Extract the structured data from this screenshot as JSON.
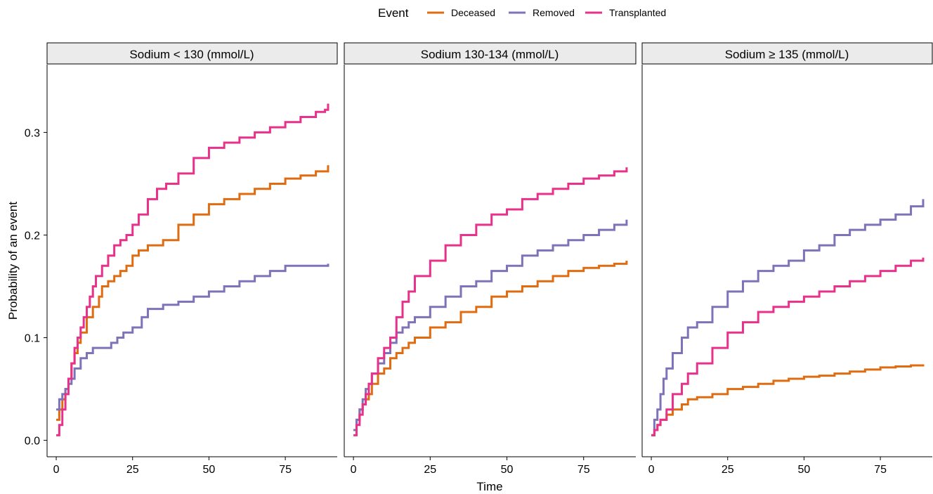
{
  "legend": {
    "title": "Event",
    "entries": [
      {
        "label": "Deceased",
        "color": "#e06c12"
      },
      {
        "label": "Removed",
        "color": "#7e72b8"
      },
      {
        "label": "Transplanted",
        "color": "#e7318a"
      }
    ]
  },
  "axes": {
    "xlabel": "Time",
    "ylabel": "Probability of an event",
    "xticks": [
      "0",
      "25",
      "50",
      "75"
    ],
    "yticks": [
      "0.0",
      "0.1",
      "0.2",
      "0.3"
    ]
  },
  "chart_data": [
    {
      "type": "line",
      "step": true,
      "title": "Sodium < 130 (mmol/L)",
      "xlabel": "Time",
      "ylabel": "Probability of an event",
      "xlim": [
        -3,
        92
      ],
      "ylim": [
        -0.016,
        0.366
      ],
      "series": [
        {
          "name": "Deceased",
          "color": "#e06c12",
          "x": [
            0,
            1,
            2,
            3,
            4,
            5,
            6,
            7,
            8,
            10,
            12,
            14,
            15,
            17,
            19,
            21,
            23,
            25,
            27,
            30,
            35,
            40,
            45,
            50,
            55,
            60,
            65,
            70,
            75,
            80,
            85,
            89
          ],
          "y": [
            0.02,
            0.03,
            0.04,
            0.05,
            0.06,
            0.075,
            0.085,
            0.095,
            0.105,
            0.12,
            0.13,
            0.14,
            0.15,
            0.155,
            0.16,
            0.165,
            0.17,
            0.18,
            0.185,
            0.19,
            0.195,
            0.21,
            0.22,
            0.23,
            0.235,
            0.24,
            0.245,
            0.25,
            0.255,
            0.258,
            0.262,
            0.268
          ]
        },
        {
          "name": "Removed",
          "color": "#7e72b8",
          "x": [
            0,
            1,
            2,
            3,
            4,
            5,
            6,
            8,
            10,
            12,
            15,
            18,
            20,
            22,
            25,
            28,
            30,
            35,
            40,
            45,
            50,
            55,
            60,
            65,
            70,
            75,
            80,
            85,
            89
          ],
          "y": [
            0.03,
            0.04,
            0.045,
            0.05,
            0.055,
            0.06,
            0.07,
            0.08,
            0.085,
            0.09,
            0.09,
            0.095,
            0.1,
            0.105,
            0.11,
            0.12,
            0.128,
            0.132,
            0.135,
            0.14,
            0.145,
            0.15,
            0.155,
            0.16,
            0.165,
            0.17,
            0.17,
            0.17,
            0.172
          ]
        },
        {
          "name": "Transplanted",
          "color": "#e7318a",
          "x": [
            0,
            1,
            2,
            3,
            4,
            5,
            6,
            7,
            8,
            9,
            10,
            11,
            12,
            13,
            15,
            17,
            19,
            21,
            23,
            25,
            27,
            30,
            33,
            36,
            40,
            45,
            50,
            55,
            60,
            65,
            70,
            75,
            80,
            85,
            88,
            89
          ],
          "y": [
            0.005,
            0.015,
            0.03,
            0.045,
            0.06,
            0.075,
            0.09,
            0.1,
            0.11,
            0.12,
            0.13,
            0.14,
            0.15,
            0.16,
            0.17,
            0.18,
            0.19,
            0.195,
            0.2,
            0.21,
            0.22,
            0.235,
            0.245,
            0.25,
            0.26,
            0.275,
            0.285,
            0.29,
            0.295,
            0.3,
            0.305,
            0.31,
            0.315,
            0.32,
            0.322,
            0.328
          ]
        }
      ]
    },
    {
      "type": "line",
      "step": true,
      "title": "Sodium 130-134 (mmol/L)",
      "xlabel": "Time",
      "ylabel": "Probability of an event",
      "xlim": [
        -3,
        92
      ],
      "ylim": [
        -0.016,
        0.366
      ],
      "series": [
        {
          "name": "Deceased",
          "color": "#e06c12",
          "x": [
            0,
            1,
            2,
            3,
            4,
            5,
            6,
            8,
            10,
            12,
            14,
            16,
            18,
            20,
            25,
            30,
            35,
            40,
            45,
            50,
            55,
            60,
            65,
            70,
            75,
            80,
            85,
            89
          ],
          "y": [
            0.01,
            0.02,
            0.03,
            0.035,
            0.04,
            0.045,
            0.055,
            0.065,
            0.07,
            0.08,
            0.085,
            0.09,
            0.095,
            0.1,
            0.11,
            0.115,
            0.125,
            0.13,
            0.14,
            0.145,
            0.15,
            0.155,
            0.16,
            0.165,
            0.168,
            0.17,
            0.172,
            0.175
          ]
        },
        {
          "name": "Removed",
          "color": "#7e72b8",
          "x": [
            0,
            1,
            2,
            3,
            4,
            5,
            6,
            8,
            10,
            12,
            14,
            16,
            18,
            20,
            25,
            30,
            35,
            40,
            45,
            50,
            55,
            60,
            65,
            70,
            75,
            80,
            85,
            89
          ],
          "y": [
            0.01,
            0.02,
            0.03,
            0.04,
            0.05,
            0.055,
            0.065,
            0.075,
            0.085,
            0.095,
            0.105,
            0.11,
            0.115,
            0.12,
            0.13,
            0.14,
            0.15,
            0.155,
            0.165,
            0.17,
            0.18,
            0.185,
            0.19,
            0.195,
            0.2,
            0.205,
            0.21,
            0.215
          ]
        },
        {
          "name": "Transplanted",
          "color": "#e7318a",
          "x": [
            0,
            1,
            2,
            3,
            4,
            5,
            6,
            8,
            10,
            12,
            14,
            16,
            18,
            20,
            25,
            30,
            35,
            40,
            45,
            50,
            55,
            60,
            65,
            70,
            75,
            80,
            85,
            89
          ],
          "y": [
            0.005,
            0.015,
            0.025,
            0.035,
            0.045,
            0.055,
            0.065,
            0.08,
            0.09,
            0.1,
            0.12,
            0.135,
            0.145,
            0.16,
            0.175,
            0.19,
            0.2,
            0.21,
            0.22,
            0.225,
            0.235,
            0.24,
            0.245,
            0.25,
            0.255,
            0.258,
            0.262,
            0.266
          ]
        }
      ]
    },
    {
      "type": "line",
      "step": true,
      "title": "Sodium ≥ 135 (mmol/L)",
      "xlabel": "Time",
      "ylabel": "Probability of an event",
      "xlim": [
        -3,
        92
      ],
      "ylim": [
        -0.016,
        0.366
      ],
      "series": [
        {
          "name": "Deceased",
          "color": "#e06c12",
          "x": [
            0,
            1,
            2,
            3,
            5,
            7,
            10,
            12,
            15,
            20,
            25,
            30,
            35,
            40,
            45,
            50,
            55,
            60,
            65,
            70,
            75,
            80,
            85,
            89
          ],
          "y": [
            0.005,
            0.01,
            0.015,
            0.02,
            0.025,
            0.03,
            0.035,
            0.04,
            0.042,
            0.045,
            0.05,
            0.052,
            0.055,
            0.058,
            0.06,
            0.062,
            0.063,
            0.065,
            0.067,
            0.069,
            0.071,
            0.072,
            0.073,
            0.074
          ]
        },
        {
          "name": "Removed",
          "color": "#7e72b8",
          "x": [
            0,
            1,
            2,
            3,
            4,
            5,
            7,
            10,
            12,
            15,
            20,
            25,
            30,
            35,
            40,
            45,
            50,
            55,
            60,
            65,
            70,
            75,
            80,
            85,
            89
          ],
          "y": [
            0.005,
            0.02,
            0.03,
            0.045,
            0.06,
            0.07,
            0.085,
            0.1,
            0.11,
            0.115,
            0.13,
            0.145,
            0.155,
            0.165,
            0.17,
            0.175,
            0.185,
            0.19,
            0.2,
            0.205,
            0.21,
            0.215,
            0.22,
            0.228,
            0.235
          ]
        },
        {
          "name": "Transplanted",
          "color": "#e7318a",
          "x": [
            0,
            1,
            2,
            3,
            5,
            7,
            10,
            12,
            15,
            20,
            25,
            30,
            35,
            40,
            45,
            50,
            55,
            60,
            65,
            70,
            75,
            80,
            85,
            89
          ],
          "y": [
            0.005,
            0.01,
            0.015,
            0.02,
            0.03,
            0.045,
            0.055,
            0.065,
            0.075,
            0.09,
            0.105,
            0.115,
            0.125,
            0.13,
            0.135,
            0.14,
            0.145,
            0.15,
            0.155,
            0.16,
            0.165,
            0.17,
            0.175,
            0.178
          ]
        }
      ]
    }
  ]
}
